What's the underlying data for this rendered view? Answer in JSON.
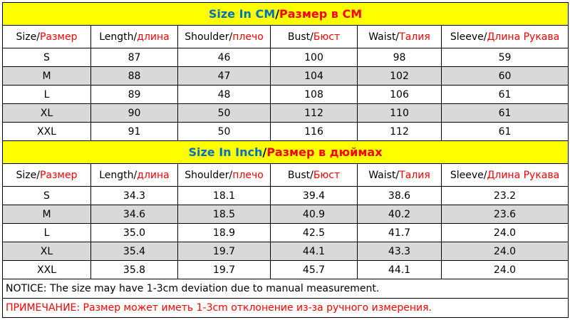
{
  "tables": [
    {
      "title": {
        "en": "Size In CM",
        "sep": "/",
        "ru": "Размер в CM"
      },
      "headers": [
        {
          "en": "Size/",
          "ru": "Размер"
        },
        {
          "en": "Length/",
          "ru": "длина"
        },
        {
          "en": "Shoulder/",
          "ru": "плечо"
        },
        {
          "en": "Bust/",
          "ru": "Бюст"
        },
        {
          "en": "Waist/",
          "ru": "Талия"
        },
        {
          "en": "Sleeve/",
          "ru": "Длина Рукава"
        }
      ],
      "rows": [
        [
          "S",
          "87",
          "46",
          "100",
          "98",
          "59"
        ],
        [
          "M",
          "88",
          "47",
          "104",
          "102",
          "60"
        ],
        [
          "L",
          "89",
          "48",
          "108",
          "106",
          "61"
        ],
        [
          "XL",
          "90",
          "50",
          "112",
          "110",
          "61"
        ],
        [
          "XXL",
          "91",
          "50",
          "116",
          "112",
          "61"
        ]
      ]
    },
    {
      "title": {
        "en": "Size In Inch",
        "sep": "/",
        "ru": "Размер в дюймах"
      },
      "headers": [
        {
          "en": "Size/",
          "ru": "Размер"
        },
        {
          "en": "Length/",
          "ru": "длина"
        },
        {
          "en": "Shoulder/",
          "ru": "плечо"
        },
        {
          "en": "Bust/",
          "ru": "Бюст"
        },
        {
          "en": "Waist/",
          "ru": "Талия"
        },
        {
          "en": "Sleeve/",
          "ru": "Длина Рукава"
        }
      ],
      "rows": [
        [
          "S",
          "34.3",
          "18.1",
          "39.4",
          "38.6",
          "23.2"
        ],
        [
          "M",
          "34.6",
          "18.5",
          "40.9",
          "40.2",
          "23.6"
        ],
        [
          "L",
          "35.0",
          "18.9",
          "42.5",
          "41.7",
          "24.0"
        ],
        [
          "XL",
          "35.4",
          "19.7",
          "44.1",
          "43.3",
          "24.0"
        ],
        [
          "XXL",
          "35.8",
          "19.7",
          "45.7",
          "44.1",
          "24.0"
        ]
      ]
    }
  ],
  "notice": {
    "en": "NOTICE:  The size may have 1-3cm deviation due to manual measurement.",
    "ru": "ПРИМЕЧАНИЕ: Размер может иметь 1-3cm отклонение из-за ручного измерения."
  }
}
